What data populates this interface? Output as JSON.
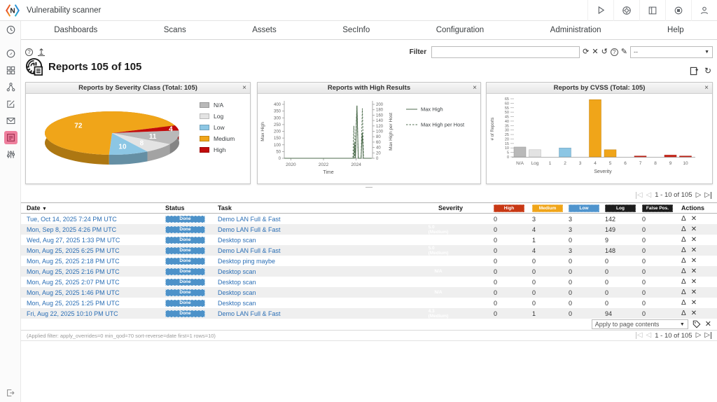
{
  "topbar": {
    "title": "Vulnerability scanner",
    "icons": [
      "play-icon",
      "lifering-icon",
      "manual-icon",
      "target-icon",
      "user-icon"
    ]
  },
  "nav": {
    "items": [
      "Dashboards",
      "Scans",
      "Assets",
      "SecInfo",
      "Configuration",
      "Administration",
      "Help"
    ]
  },
  "sidebar": {
    "items": [
      "clock-icon",
      "compass-icon",
      "dashboards-icon",
      "topology-icon",
      "edit-icon",
      "mail-icon",
      "scans-icon",
      "filters-icon",
      "logout-icon"
    ],
    "active": "scans-icon",
    "active_color": "#ee7f9d"
  },
  "toolbar": {
    "filter_label": "Filter",
    "filter_value": "",
    "dropdown_value": "--"
  },
  "page": {
    "title": "Reports 105 of 105"
  },
  "glyphs": {
    "help": "?",
    "upload": "↥",
    "refresh": "⟳",
    "delete": "✕",
    "reset": "↺",
    "edit": "✎",
    "dropdown": "▼",
    "sort_desc": "▼",
    "close": "×",
    "first": "◁",
    "prev": "◁",
    "next": "▷",
    "last": "▷",
    "delta": "Δ",
    "x": "✕",
    "handle": "—",
    "reload": "↻"
  },
  "pagination": {
    "label": "1 - 10 of 105"
  },
  "chart_data": [
    {
      "type": "pie",
      "title": "Reports by Severity Class (Total: 105)",
      "labels": [
        "N/A",
        "Log",
        "Low",
        "Medium",
        "High"
      ],
      "values": [
        11,
        8,
        10,
        72,
        4
      ],
      "colors": [
        "#b9b9b9",
        "#e3e3e3",
        "#8cc6e4",
        "#f0a519",
        "#c10b0b"
      ],
      "legend_position": "right",
      "total": 105
    },
    {
      "type": "line",
      "title": "Reports with High Results",
      "xlabel": "Time",
      "x_ticks": [
        2020,
        2022,
        2024
      ],
      "x_range": [
        2019.6,
        2025.0
      ],
      "axes": {
        "left": {
          "label": "Max High",
          "range": [
            0,
            400
          ],
          "step": 50
        },
        "right": {
          "label": "Max High per Host",
          "range": [
            0,
            200
          ],
          "step": 20
        }
      },
      "series": [
        {
          "name": "Max High",
          "axis": "left",
          "style": "solid",
          "color": "#4c6b4c",
          "points": [
            [
              2019.6,
              0
            ],
            [
              2023.85,
              0
            ],
            [
              2023.9,
              115
            ],
            [
              2023.96,
              0
            ],
            [
              2024.05,
              390
            ],
            [
              2024.13,
              0
            ],
            [
              2024.3,
              0
            ],
            [
              2024.37,
              190
            ],
            [
              2024.44,
              0
            ],
            [
              2024.95,
              0
            ]
          ]
        },
        {
          "name": "Max High per Host",
          "axis": "right",
          "style": "dashed",
          "color": "#4c6b4c",
          "points": [
            [
              2019.6,
              0
            ],
            [
              2023.8,
              0
            ],
            [
              2023.86,
              120
            ],
            [
              2023.92,
              0
            ],
            [
              2024.05,
              195
            ],
            [
              2024.13,
              0
            ],
            [
              2024.3,
              0
            ],
            [
              2024.38,
              185
            ],
            [
              2024.45,
              0
            ],
            [
              2024.95,
              0
            ]
          ]
        }
      ],
      "legend_position": "right"
    },
    {
      "type": "bar",
      "title": "Reports by CVSS (Total: 105)",
      "xlabel": "Severity",
      "ylabel": "# of Reports",
      "categories": [
        "N/A",
        "Log",
        "1",
        "2",
        "3",
        "4",
        "5",
        "6",
        "7",
        "8",
        "9",
        "10"
      ],
      "values": [
        11,
        8,
        0,
        10,
        0,
        64,
        8,
        0,
        1,
        0,
        2,
        1
      ],
      "colors": [
        "#b9b9b9",
        "#e3e3e3",
        "#8cc6e4",
        "#8cc6e4",
        "#8cc6e4",
        "#f0a519",
        "#f0a519",
        "#f0a519",
        "#cc2418",
        "#cc2418",
        "#cc2418",
        "#cc2418"
      ],
      "ylim": [
        0,
        65
      ],
      "ystep": 5,
      "total": 105
    }
  ],
  "table": {
    "headers": {
      "date": "Date",
      "status": "Status",
      "task": "Task",
      "severity": "Severity",
      "high": "High",
      "medium": "Medium",
      "low": "Low",
      "log": "Log",
      "false_pos": "False Pos.",
      "actions": "Actions"
    },
    "rows": [
      {
        "date": "Tue, Oct 14, 2025 7:24 PM UTC",
        "status": "Done",
        "task": "Demo LAN Full & Fast",
        "severity": "5.0 (Medium)",
        "severity_pct": 50,
        "high": "0",
        "medium": "3",
        "low": "3",
        "log": "142",
        "false_pos": "0"
      },
      {
        "date": "Mon, Sep 8, 2025 4:26 PM UTC",
        "status": "Done",
        "task": "Demo LAN Full & Fast",
        "severity": "5.0 (Medium)",
        "severity_pct": 50,
        "high": "0",
        "medium": "4",
        "low": "3",
        "log": "149",
        "false_pos": "0"
      },
      {
        "date": "Wed, Aug 27, 2025 1:33 PM UTC",
        "status": "Done",
        "task": "Desktop scan",
        "severity": "5.0 (Medium)",
        "severity_pct": 50,
        "high": "0",
        "medium": "1",
        "low": "0",
        "log": "9",
        "false_pos": "0"
      },
      {
        "date": "Mon, Aug 25, 2025 6:25 PM UTC",
        "status": "Done",
        "task": "Demo LAN Full & Fast",
        "severity": "5.0 (Medium)",
        "severity_pct": 50,
        "high": "0",
        "medium": "4",
        "low": "3",
        "log": "148",
        "false_pos": "0"
      },
      {
        "date": "Mon, Aug 25, 2025 2:18 PM UTC",
        "status": "Done",
        "task": "Desktop ping maybe",
        "severity": "N/A",
        "severity_pct": 0,
        "high": "0",
        "medium": "0",
        "low": "0",
        "log": "0",
        "false_pos": "0"
      },
      {
        "date": "Mon, Aug 25, 2025 2:16 PM UTC",
        "status": "Done",
        "task": "Desktop scan",
        "severity": "N/A",
        "severity_pct": 0,
        "high": "0",
        "medium": "0",
        "low": "0",
        "log": "0",
        "false_pos": "0"
      },
      {
        "date": "Mon, Aug 25, 2025 2:07 PM UTC",
        "status": "Done",
        "task": "Desktop scan",
        "severity": "N/A",
        "severity_pct": 0,
        "high": "0",
        "medium": "0",
        "low": "0",
        "log": "0",
        "false_pos": "0"
      },
      {
        "date": "Mon, Aug 25, 2025 1:46 PM UTC",
        "status": "Done",
        "task": "Desktop scan",
        "severity": "N/A",
        "severity_pct": 0,
        "high": "0",
        "medium": "0",
        "low": "0",
        "log": "0",
        "false_pos": "0"
      },
      {
        "date": "Mon, Aug 25, 2025 1:25 PM UTC",
        "status": "Done",
        "task": "Desktop scan",
        "severity": "N/A",
        "severity_pct": 0,
        "high": "0",
        "medium": "0",
        "low": "0",
        "log": "0",
        "false_pos": "0"
      },
      {
        "date": "Fri, Aug 22, 2025 10:10 PM UTC",
        "status": "Done",
        "task": "Demo LAN Full & Fast",
        "severity": "4.3 (Medium)",
        "severity_pct": 43,
        "high": "0",
        "medium": "1",
        "low": "0",
        "log": "94",
        "false_pos": "0"
      }
    ]
  },
  "footer": {
    "apply_dropdown": "Apply to page contents",
    "applied_filter": "(Applied filter: apply_overrides=0 min_qod=70 sort-reverse=date first=1 rows=10)"
  },
  "colors": {
    "status_done": "#4d92c9",
    "high": "#c83814",
    "medium": "#f0a519",
    "low": "#4f94cd",
    "log": "#1c1c1c",
    "false_pos": "#1c1c1c",
    "link": "#2a6eb5",
    "severity_bar_bg": "#424242",
    "severity_bar_fill": "#f0a519"
  }
}
